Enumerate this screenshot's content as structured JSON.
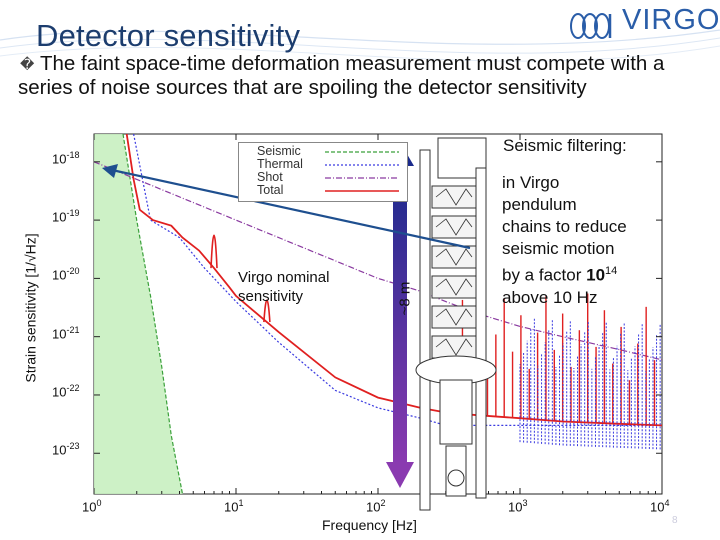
{
  "slide": {
    "title": "Detector sensitivity",
    "bullet": "The faint space-time deformation measurement must compete with a series of noise sources that are spoiling the detector sensitivity",
    "bullet_mark": "�",
    "logo_text": "VIRGO",
    "page_number": "8"
  },
  "annotations": {
    "nominal_line1": "Virgo nominal",
    "nominal_line2": "sensitivity",
    "seismic_title": "Seismic filtering:",
    "seismic_l1": "in Virgo",
    "seismic_l2": "pendulum",
    "seismic_l3": "chains to reduce",
    "seismic_l4": "seismic motion",
    "seismic_l5_pre": "by a factor ",
    "seismic_l5_base": "10",
    "seismic_l5_exp": "14",
    "seismic_l6": "above 10 Hz",
    "height_label": "~8 m"
  },
  "colors": {
    "title": "#1c3d6e",
    "seismic": "#3aa03a",
    "seismic_fill": "#c8f0c0",
    "thermal": "#3a3ae0",
    "shot": "#8a3aa0",
    "total": "#e02020",
    "arrow_top": "#1a2a8c",
    "arrow_bottom": "#8a3ab0",
    "pointer": "#1e4f8f"
  },
  "chart_data": {
    "type": "line",
    "xscale": "log",
    "yscale": "log",
    "xlabel": "Frequency [Hz]",
    "ylabel": "Strain sensitivity [1/√Hz]",
    "xlim": [
      1,
      10000
    ],
    "ylim": [
      2e-24,
      3e-18
    ],
    "xticks": [
      {
        "base": "10",
        "exp": "0"
      },
      {
        "base": "10",
        "exp": "1"
      },
      {
        "base": "10",
        "exp": "2"
      },
      {
        "base": "10",
        "exp": "3"
      },
      {
        "base": "10",
        "exp": "4"
      }
    ],
    "yticks": [
      {
        "base": "10",
        "exp": "-18"
      },
      {
        "base": "10",
        "exp": "-19"
      },
      {
        "base": "10",
        "exp": "-20"
      },
      {
        "base": "10",
        "exp": "-21"
      },
      {
        "base": "10",
        "exp": "-22"
      },
      {
        "base": "10",
        "exp": "-23"
      }
    ],
    "legend_position": "top-center",
    "series": [
      {
        "name": "Seismic",
        "x": [
          1.6,
          2,
          2.5,
          3,
          3.5,
          4.2
        ],
        "y": [
          3e-18,
          1e-19,
          5e-21,
          3e-22,
          2e-23,
          2e-24
        ]
      },
      {
        "name": "Thermal",
        "x": [
          1.9,
          2.5,
          4,
          6,
          10,
          20,
          50,
          100,
          200,
          300,
          500,
          1000,
          2000,
          5000,
          10000
        ],
        "y": [
          3e-18,
          1e-19,
          5e-20,
          1.5e-20,
          4e-21,
          8e-22,
          1.2e-22,
          6e-23,
          4e-23,
          3e-23,
          3e-23,
          3e-23,
          3e-23,
          3e-23,
          3e-23
        ]
      },
      {
        "name": "Shot",
        "x": [
          1,
          10,
          50,
          100,
          200,
          300,
          500,
          1000,
          2000,
          5000,
          10000
        ],
        "y": [
          1e-18,
          1e-19,
          2e-20,
          1e-20,
          6e-21,
          4e-21,
          2.5e-21,
          1.5e-21,
          1e-21,
          6e-22,
          4e-22
        ]
      },
      {
        "name": "Total",
        "x": [
          1.7,
          1.9,
          2.1,
          2.6,
          3.5,
          4.2,
          5.5,
          7,
          9,
          10,
          20,
          50,
          100,
          200,
          300,
          500,
          1000,
          2000,
          5000,
          10000
        ],
        "y": [
          3e-18,
          5e-19,
          1.5e-19,
          1e-19,
          8e-20,
          5e-20,
          3e-20,
          1.5e-20,
          7e-21,
          5e-21,
          1.2e-21,
          2e-22,
          9e-23,
          6e-23,
          5e-23,
          4.5e-23,
          4e-23,
          3.5e-23,
          3.2e-23,
          3e-23
        ]
      }
    ],
    "resonances": [
      {
        "series": "Total",
        "f": 7,
        "peak": 2e-19
      },
      {
        "series": "Total",
        "f": 16.5,
        "peak": 1e-20
      }
    ]
  }
}
